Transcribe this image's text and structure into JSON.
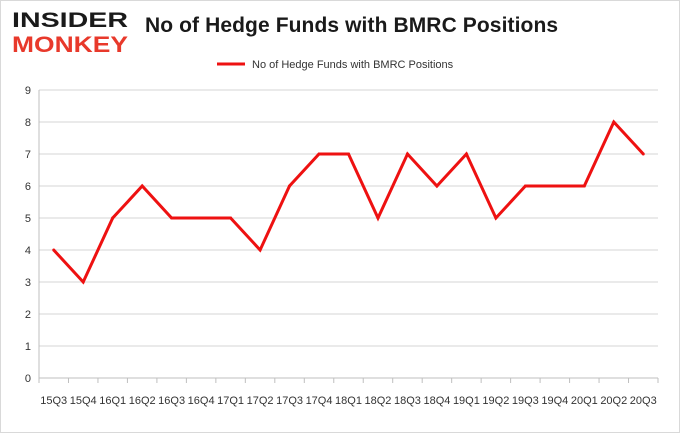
{
  "brand": {
    "line1": "INSIDER",
    "line2": "MONKEY",
    "color_dark": "#1a1a1a",
    "color_red": "#e8392b"
  },
  "chart_data": {
    "type": "line",
    "title": "No of Hedge Funds with BMRC Positions",
    "xlabel": "",
    "ylabel": "",
    "categories": [
      "15Q3",
      "15Q4",
      "16Q1",
      "16Q2",
      "16Q3",
      "16Q4",
      "17Q1",
      "17Q2",
      "17Q3",
      "17Q4",
      "18Q1",
      "18Q2",
      "18Q3",
      "18Q4",
      "19Q1",
      "19Q2",
      "19Q3",
      "19Q4",
      "20Q1",
      "20Q2",
      "20Q3"
    ],
    "series": [
      {
        "name": "No of Hedge Funds with BMRC Positions",
        "color": "#ee1111",
        "values": [
          4,
          3,
          5,
          6,
          5,
          5,
          5,
          4,
          6,
          7,
          7,
          5,
          7,
          6,
          7,
          5,
          6,
          6,
          6,
          8,
          7
        ]
      }
    ],
    "ylim": [
      0,
      9
    ],
    "yticks": [
      0,
      1,
      2,
      3,
      4,
      5,
      6,
      7,
      8,
      9
    ],
    "grid": true,
    "legend": "top-center"
  }
}
